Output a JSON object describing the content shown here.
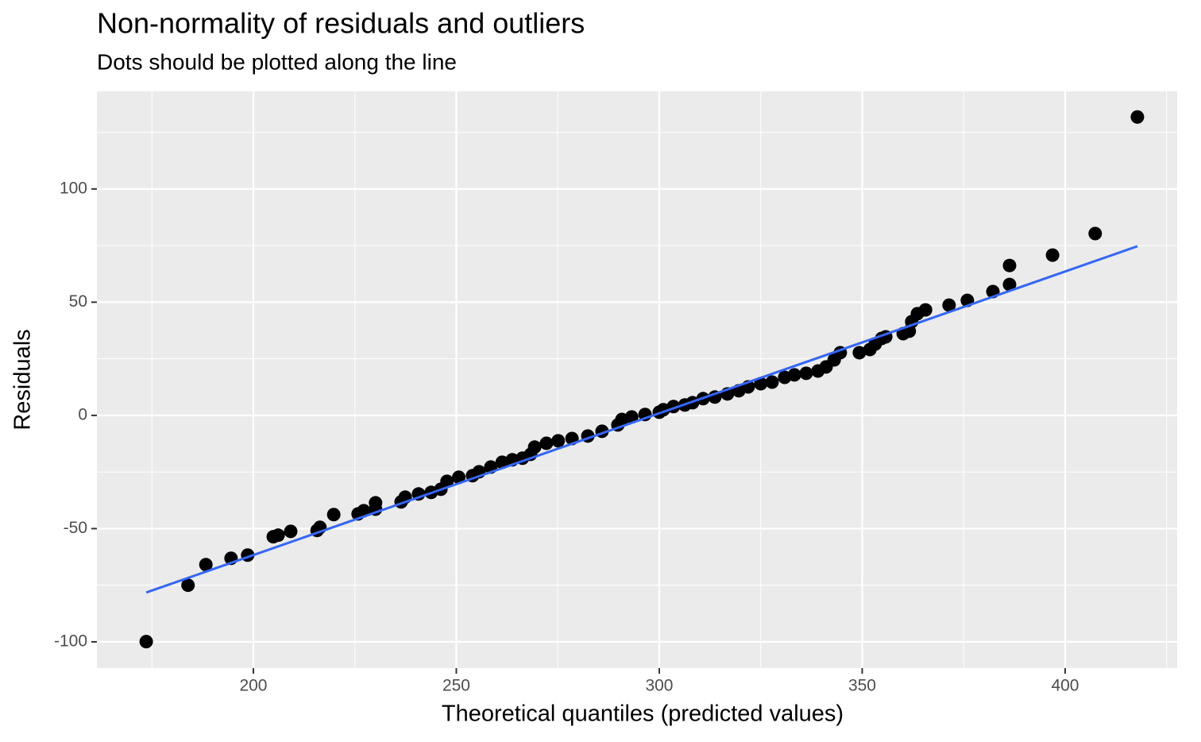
{
  "chart_data": {
    "type": "scatter",
    "title": "Non-normality of residuals and outliers",
    "subtitle": "Dots should be plotted along the line",
    "xlabel": "Theoretical quantiles (predicted values)",
    "ylabel": "Residuals",
    "color": "#000000",
    "x": [
      173.6,
      183.9,
      188.3,
      194.5,
      198.6,
      204.9,
      206.1,
      209.2,
      215.7,
      216.4,
      219.8,
      225.8,
      227.2,
      230.1,
      230.1,
      236.4,
      237.4,
      240.7,
      243.8,
      246.2,
      247.7,
      250.6,
      254.0,
      255.6,
      258.5,
      261.3,
      263.8,
      266.3,
      268.3,
      269.3,
      272.2,
      275.1,
      278.5,
      282.4,
      285.9,
      289.8,
      290.8,
      293.2,
      296.5,
      300.0,
      301.0,
      303.5,
      306.3,
      308.2,
      310.8,
      313.7,
      316.8,
      319.6,
      321.9,
      325.0,
      327.8,
      330.9,
      333.3,
      336.2,
      339.1,
      341.1,
      343.1,
      344.6,
      349.3,
      351.9,
      353.2,
      354.8,
      355.8,
      360.1,
      361.6,
      362.2,
      363.6,
      365.6,
      371.4,
      375.9,
      382.2,
      386.3,
      386.3,
      396.9,
      407.4,
      417.8
    ],
    "values": [
      -99.9,
      -75,
      -65.9,
      -63.1,
      -61.7,
      -53.6,
      -52.9,
      -51.2,
      -50.8,
      -49.4,
      -43.8,
      -43.5,
      -42.1,
      -41.4,
      -38.6,
      -38.2,
      -36.1,
      -34.7,
      -34.0,
      -32.6,
      -29.1,
      -27.3,
      -26.6,
      -24.9,
      -22.8,
      -20.7,
      -19.6,
      -18.9,
      -17.2,
      -14.0,
      -12.3,
      -11.2,
      -10.2,
      -9.1,
      -7.0,
      -4.2,
      -1.8,
      -0.7,
      0.4,
      1.4,
      2.5,
      3.9,
      4.6,
      5.6,
      7.4,
      8.1,
      9.5,
      10.9,
      12.6,
      14.0,
      14.7,
      16.8,
      17.9,
      18.6,
      19.6,
      21.4,
      24.5,
      27.7,
      27.7,
      29.1,
      31.5,
      34.0,
      34.7,
      36.1,
      37.2,
      41.4,
      44.9,
      46.6,
      48.7,
      50.8,
      54.7,
      57.8,
      66.2,
      70.8,
      80.3,
      131.8
    ],
    "line": {
      "color": "#3366ff",
      "x": [
        173.6,
        417.8
      ],
      "values": [
        -78.2,
        74.7
      ]
    },
    "xlim": [
      161.45,
      427.6
    ],
    "ylim": [
      -111.6,
      143.1
    ],
    "xticks": [
      200,
      250,
      300,
      350,
      400
    ],
    "yticks": [
      -100,
      -50,
      0,
      50,
      100
    ],
    "grid": true
  }
}
